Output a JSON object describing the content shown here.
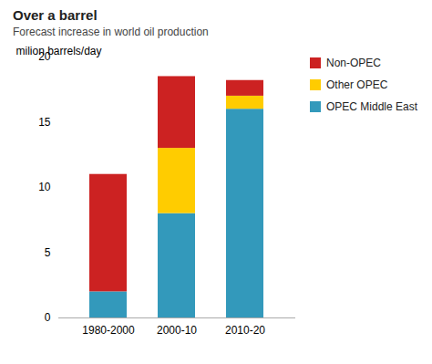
{
  "chart_data": {
    "type": "bar",
    "stacked": true,
    "title": "Over a barrel",
    "subtitle": "Forecast increase in world oil production",
    "ylabel": "milion barrels/day",
    "categories": [
      "1980-2000",
      "2000-10",
      "2010-20"
    ],
    "series": [
      {
        "name": "OPEC Middle East",
        "color": "#3399BB",
        "values": [
          2.0,
          8.0,
          16.0
        ]
      },
      {
        "name": "Other OPEC",
        "color": "#FFCC00",
        "values": [
          0.0,
          5.0,
          1.0
        ]
      },
      {
        "name": "Non-OPEC",
        "color": "#CC2222",
        "values": [
          9.0,
          5.5,
          1.2
        ]
      }
    ],
    "ylim": [
      0,
      20
    ],
    "yticks": [
      0,
      5,
      10,
      15,
      20
    ],
    "grid": false,
    "legend": "right"
  }
}
